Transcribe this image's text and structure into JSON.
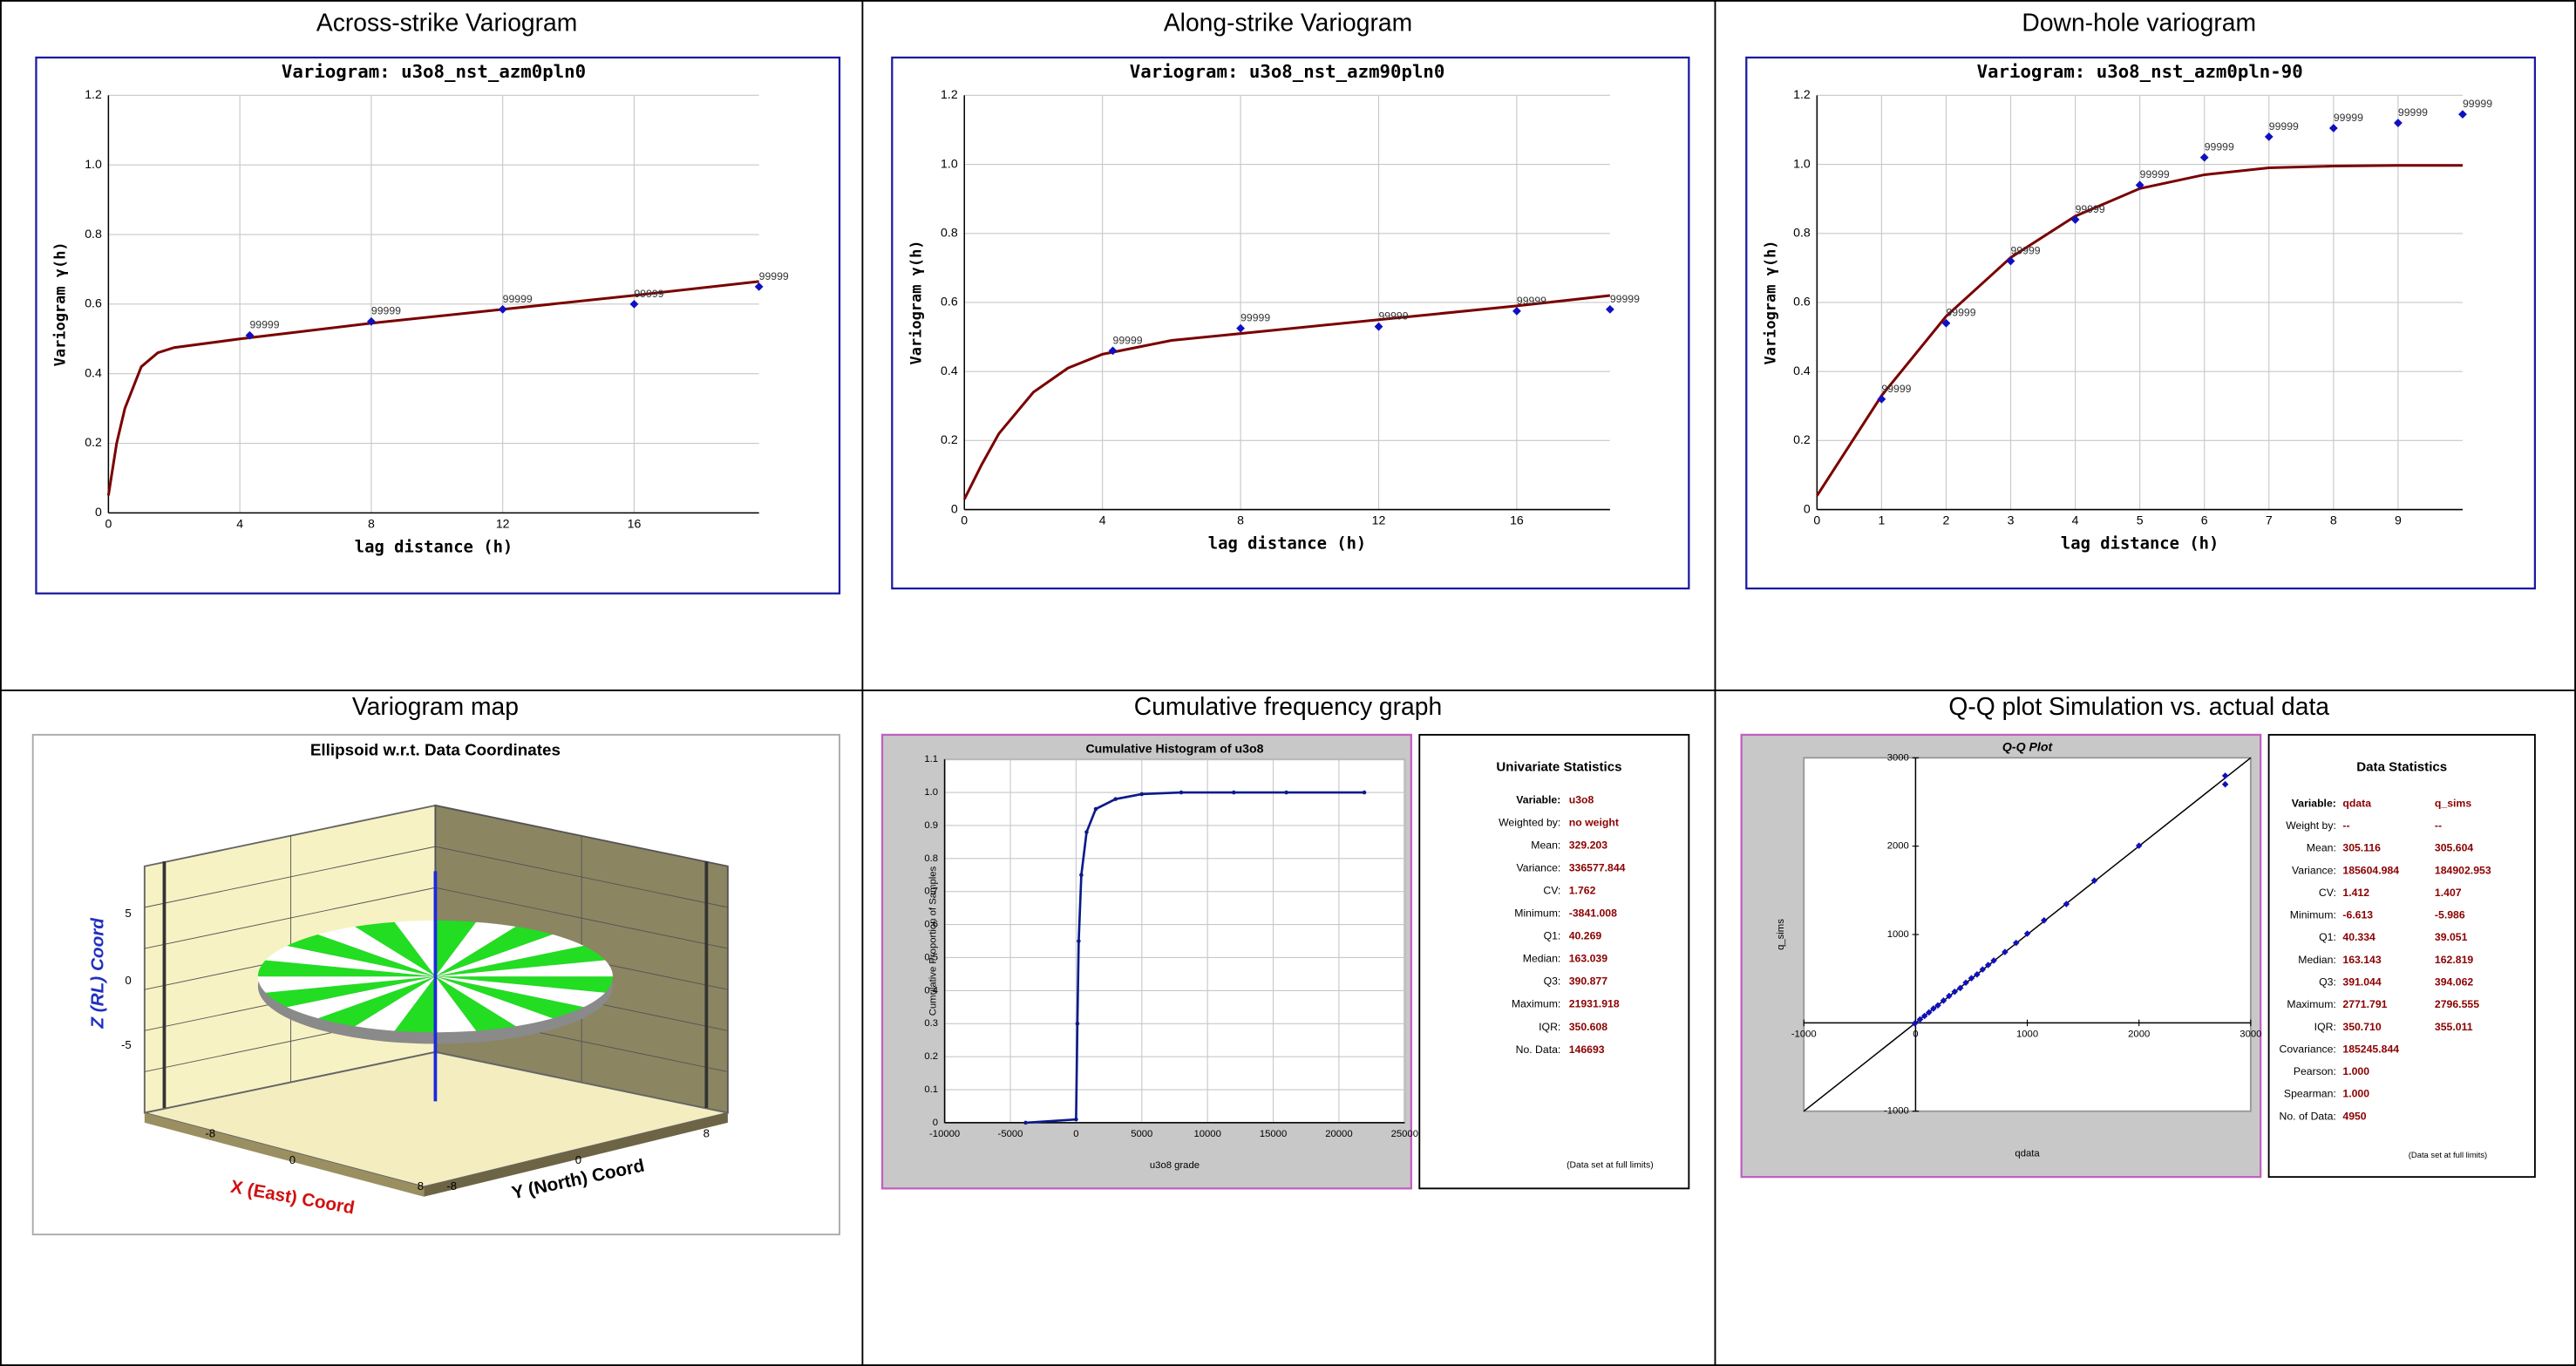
{
  "panel_titles": [
    "Across-strike Variogram",
    "Along-strike Variogram",
    "Down-hole variogram",
    "Variogram map",
    "Cumulative frequency graph",
    "Q-Q plot Simulation vs. actual data"
  ],
  "chart_data": [
    {
      "type": "scatter",
      "title": "Variogram: u3o8_nst_azm0pln0",
      "x_label": "lag distance (h)",
      "y_label": "Variogram γ(h)",
      "xlim": [
        0,
        19.8
      ],
      "xticks": [
        0,
        4,
        8,
        12,
        16
      ],
      "ylim": [
        0,
        1.2
      ],
      "yticks": [
        0,
        0.2,
        0.4,
        0.6,
        0.8,
        {
          "value": 1,
          "label": "1.0"
        },
        1.2
      ],
      "grid": true,
      "points": {
        "color": "#1010c0",
        "x": [
          4.3,
          8,
          12,
          16,
          19.8
        ],
        "y": [
          0.51,
          0.55,
          0.585,
          0.6,
          0.65
        ],
        "pairs": [
          99999,
          99999,
          99999,
          99999,
          99999
        ]
      },
      "model": {
        "color": "#7a0000",
        "x": [
          0,
          0.25,
          0.5,
          1,
          1.5,
          2,
          4,
          8,
          12,
          16,
          19.8
        ],
        "y": [
          0.05,
          0.2,
          0.3,
          0.42,
          0.46,
          0.475,
          0.5,
          0.545,
          0.585,
          0.625,
          0.665
        ]
      }
    },
    {
      "type": "scatter",
      "title": "Variogram: u3o8_nst_azm90pln0",
      "x_label": "lag distance (h)",
      "y_label": "Variogram γ(h)",
      "xlim": [
        0,
        18.7
      ],
      "xticks": [
        0,
        4,
        8,
        12,
        16
      ],
      "ylim": [
        0,
        1.2
      ],
      "yticks": [
        0,
        0.2,
        0.4,
        0.6,
        0.8,
        {
          "value": 1,
          "label": "1.0"
        },
        1.2
      ],
      "grid": true,
      "points": {
        "color": "#1010c0",
        "x": [
          4.3,
          8,
          12,
          16,
          18.7
        ],
        "y": [
          0.46,
          0.525,
          0.53,
          0.575,
          0.58
        ],
        "pairs": [
          99999,
          99999,
          99999,
          99999,
          99999
        ]
      },
      "model": {
        "color": "#7a0000",
        "x": [
          0,
          0.5,
          1,
          2,
          3,
          4,
          6,
          8,
          12,
          16,
          18.7
        ],
        "y": [
          0.03,
          0.13,
          0.22,
          0.34,
          0.41,
          0.45,
          0.49,
          0.51,
          0.55,
          0.59,
          0.62
        ]
      }
    },
    {
      "type": "scatter",
      "title": "Variogram: u3o8_nst_azm0pln-90",
      "x_label": "lag distance (h)",
      "y_label": "Variogram γ(h)",
      "xlim": [
        0,
        10
      ],
      "xticks": [
        0,
        1,
        2,
        3,
        4,
        5,
        6,
        7,
        8,
        9
      ],
      "ylim": [
        0,
        1.2
      ],
      "yticks": [
        0,
        0.2,
        0.4,
        0.6,
        0.8,
        {
          "value": 1,
          "label": "1.0"
        },
        1.2
      ],
      "grid": true,
      "points": {
        "color": "#1010c0",
        "x": [
          1,
          2,
          3,
          4,
          5,
          6,
          7,
          8,
          9,
          10
        ],
        "y": [
          0.32,
          0.54,
          0.72,
          0.84,
          0.94,
          1.02,
          1.08,
          1.105,
          1.12,
          1.145
        ],
        "pairs": [
          99999,
          99999,
          99999,
          99999,
          99999,
          99999,
          99999,
          99999,
          99999,
          99999
        ]
      },
      "model": {
        "color": "#7a0000",
        "x": [
          0,
          1,
          2,
          3,
          4,
          5,
          6,
          7,
          8,
          9,
          10
        ],
        "y": [
          0.04,
          0.33,
          0.56,
          0.73,
          0.85,
          0.93,
          0.97,
          0.99,
          0.995,
          0.997,
          0.997
        ]
      }
    },
    {
      "type": "line",
      "title": "Cumulative Histogram of u3o8",
      "x_label": "u3o8 grade",
      "y_label": "Cumulative Proportion of Samples",
      "xlim": [
        -10000,
        25000
      ],
      "xticks": [
        -10000,
        -5000,
        0,
        5000,
        10000,
        15000,
        20000,
        25000
      ],
      "ylim": [
        0,
        1.1
      ],
      "yticks": [
        0,
        0.1,
        0.2,
        0.3,
        0.4,
        0.5,
        0.6,
        0.7,
        0.8,
        0.9,
        {
          "value": 1,
          "label": "1.0"
        },
        1.1
      ],
      "grid": true,
      "color": "#0a1a8a",
      "x": [
        -3841,
        0,
        100,
        200,
        400,
        800,
        1500,
        3000,
        5000,
        8000,
        12000,
        16000,
        21932
      ],
      "y": [
        0,
        0.01,
        0.3,
        0.55,
        0.75,
        0.88,
        0.95,
        0.98,
        0.995,
        1,
        1,
        1,
        1
      ]
    },
    {
      "type": "scatter",
      "title": "Q-Q Plot",
      "x_label": "qdata",
      "y_label": "q_sims",
      "xlim": [
        -1000,
        3000
      ],
      "xticks": [
        -1000,
        0,
        1000,
        2000,
        3000
      ],
      "ylim": [
        -1000,
        3000
      ],
      "yticks": [
        -1000,
        1000,
        2000,
        3000
      ],
      "grid": false,
      "points": {
        "color": "#1010c0",
        "x": [
          -6.6,
          40,
          80,
          120,
          160,
          200,
          250,
          300,
          350,
          400,
          450,
          500,
          550,
          600,
          650,
          700,
          800,
          900,
          1000,
          1150,
          1350,
          1600,
          2000,
          2771.8,
          2771.8
        ],
        "y": [
          -6,
          39,
          78,
          118,
          162,
          198,
          252,
          304,
          352,
          394,
          455,
          505,
          548,
          604,
          655,
          705,
          802,
          905,
          1010,
          1160,
          1345,
          1610,
          2005,
          2700,
          2796.6
        ]
      }
    }
  ],
  "variogram_map": {
    "title": "Ellipsoid w.r.t. Data Coordinates",
    "z_label": "Z (RL) Coord",
    "x_label": "X (East) Coord",
    "y_label": "Y (North) Coord",
    "z_ticks": [
      5,
      0,
      -5
    ],
    "x_ticks": [
      -8,
      0,
      8
    ],
    "y_ticks": [
      -8,
      0,
      8
    ]
  },
  "univariate_stats": {
    "title": "Univariate Statistics",
    "note": "(Data set at full limits)",
    "rows": [
      [
        "Variable:",
        "u3o8"
      ],
      [
        "Weighted by:",
        "no weight"
      ],
      [
        "Mean:",
        "329.203"
      ],
      [
        "Variance:",
        "336577.844"
      ],
      [
        "CV:",
        "1.762"
      ],
      [
        "Minimum:",
        "-3841.008"
      ],
      [
        "Q1:",
        "40.269"
      ],
      [
        "Median:",
        "163.039"
      ],
      [
        "Q3:",
        "390.877"
      ],
      [
        "Maximum:",
        "21931.918"
      ],
      [
        "IQR:",
        "350.608"
      ],
      [
        "No. Data:",
        "146693"
      ]
    ]
  },
  "data_stats": {
    "title": "Data Statistics",
    "note": "(Data set at full limits)",
    "rows": [
      [
        "Variable:",
        "qdata",
        "q_sims"
      ],
      [
        "Weight by:",
        "--",
        "--"
      ],
      [
        "Mean:",
        "305.116",
        "305.604"
      ],
      [
        "Variance:",
        "185604.984",
        "184902.953"
      ],
      [
        "CV:",
        "1.412",
        "1.407"
      ],
      [
        "Minimum:",
        "-6.613",
        "-5.986"
      ],
      [
        "Q1:",
        "40.334",
        "39.051"
      ],
      [
        "Median:",
        "163.143",
        "162.819"
      ],
      [
        "Q3:",
        "391.044",
        "394.062"
      ],
      [
        "Maximum:",
        "2771.791",
        "2796.555"
      ],
      [
        "IQR:",
        "350.710",
        "355.011"
      ],
      [
        "Covariance:",
        "185245.844"
      ],
      [
        "Pearson:",
        "1.000"
      ],
      [
        "Spearman:",
        "1.000"
      ],
      [
        "No. of Data:",
        "4950"
      ]
    ]
  }
}
